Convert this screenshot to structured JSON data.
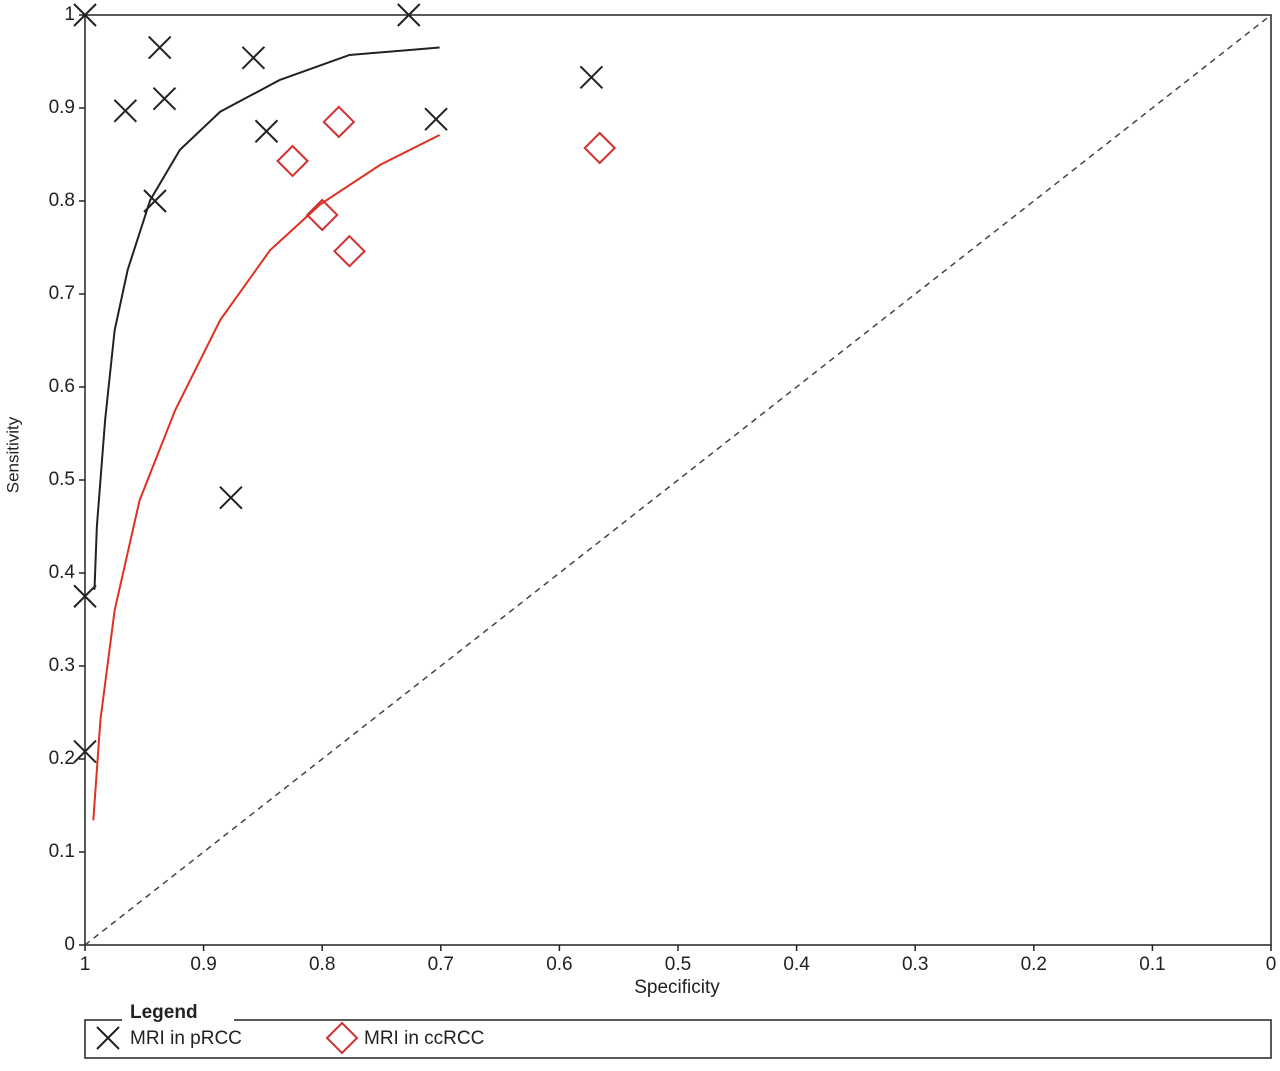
{
  "chart_data": {
    "type": "scatter",
    "x_label": "Specificity",
    "y_label": "Sensitivity",
    "xlim": [
      1,
      0
    ],
    "ylim": [
      0,
      1
    ],
    "xticks": [
      1,
      0.9,
      0.8,
      0.7,
      0.6,
      0.5,
      0.4,
      0.3,
      0.2,
      0.1,
      0
    ],
    "yticks": [
      0,
      0.1,
      0.2,
      0.3,
      0.4,
      0.5,
      0.6,
      0.7,
      0.8,
      0.9,
      1
    ],
    "legend_title": "Legend",
    "series": [
      {
        "name": "MRI in pRCC",
        "color": "#222222",
        "marker": "x",
        "x": [
          1,
          0.727,
          0.937,
          0.858,
          0.573,
          0.966,
          0.933,
          0.847,
          0.704,
          0.941,
          0.877,
          1,
          1
        ],
        "y": [
          1,
          1,
          0.965,
          0.954,
          0.933,
          0.897,
          0.91,
          0.875,
          0.888,
          0.8,
          0.481,
          0.375,
          0.208
        ]
      },
      {
        "name": "MRI in ccRCC",
        "color": "#d03030",
        "marker": "diamond",
        "x": [
          0.786,
          0.825,
          0.566,
          0.8,
          0.777
        ],
        "y": [
          0.885,
          0.843,
          0.857,
          0.785,
          0.746
        ]
      }
    ],
    "curves": [
      {
        "color": "#222222",
        "x": [
          0.992,
          0.99,
          0.983,
          0.975,
          0.964,
          0.945,
          0.92,
          0.886,
          0.836,
          0.777,
          0.701
        ],
        "y": [
          0.382,
          0.45,
          0.565,
          0.661,
          0.726,
          0.801,
          0.855,
          0.896,
          0.93,
          0.957,
          0.965
        ]
      },
      {
        "color": "#e03020",
        "x": [
          0.993,
          0.987,
          0.975,
          0.954,
          0.924,
          0.886,
          0.844,
          0.802,
          0.751,
          0.701
        ],
        "y": [
          0.134,
          0.242,
          0.36,
          0.478,
          0.575,
          0.672,
          0.747,
          0.796,
          0.839,
          0.871
        ]
      }
    ]
  }
}
